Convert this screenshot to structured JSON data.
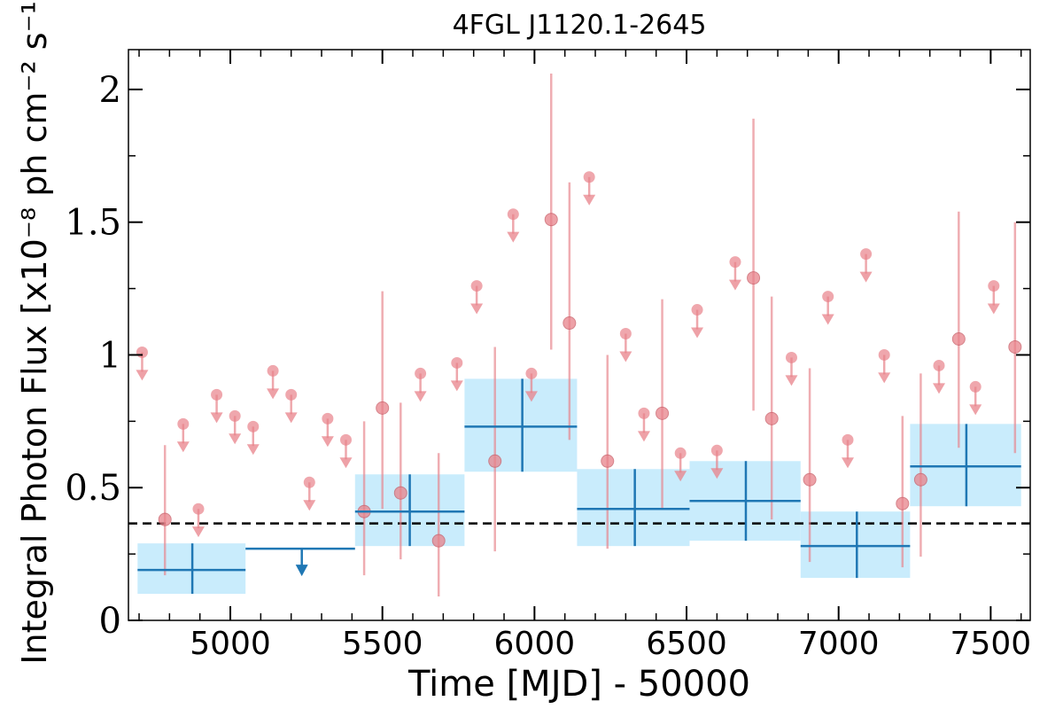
{
  "chart_data": {
    "type": "scatter",
    "title": "4FGL J1120.1-2645",
    "xlabel": "Time [MJD] - 50000",
    "ylabel": "Integral Photon Flux [x10⁻⁸ ph cm⁻² s⁻¹]",
    "xlim": [
      4665,
      7630
    ],
    "ylim": [
      0,
      2.15
    ],
    "x_ticks": [
      5000,
      5500,
      6000,
      6500,
      7000,
      7500
    ],
    "y_ticks": [
      0,
      0.5,
      1,
      1.5,
      2
    ],
    "y_tick_labels": [
      "0",
      "0.5",
      "1",
      "1.5",
      "2"
    ],
    "grid": false,
    "reference_line": {
      "y": 0.365,
      "style": "dashed"
    },
    "colors": {
      "fine_series": "#e8828a",
      "coarse_series": "#1f77b4",
      "band_fill": "#c9ecfc",
      "reference": "#000000"
    },
    "series": [
      {
        "kind": "fine-detections",
        "points": [
          {
            "x": 4785,
            "y": 0.38,
            "yerr_low": 0.21,
            "yerr_high": 0.28
          },
          {
            "x": 5500,
            "y": 0.8,
            "yerr_low": 0.38,
            "yerr_high": 0.44
          },
          {
            "x": 5440,
            "y": 0.41,
            "yerr_low": 0.24,
            "yerr_high": 0.34
          },
          {
            "x": 5560,
            "y": 0.48,
            "yerr_low": 0.25,
            "yerr_high": 0.34
          },
          {
            "x": 5685,
            "y": 0.3,
            "yerr_low": 0.21,
            "yerr_high": 0.33
          },
          {
            "x": 5870,
            "y": 0.6,
            "yerr_low": 0.34,
            "yerr_high": 0.43
          },
          {
            "x": 6055,
            "y": 1.51,
            "yerr_low": 0.49,
            "yerr_high": 0.55
          },
          {
            "x": 6115,
            "y": 1.12,
            "yerr_low": 0.44,
            "yerr_high": 0.53
          },
          {
            "x": 6240,
            "y": 0.6,
            "yerr_low": 0.33,
            "yerr_high": 0.4
          },
          {
            "x": 6420,
            "y": 0.78,
            "yerr_low": 0.36,
            "yerr_high": 0.43
          },
          {
            "x": 6720,
            "y": 1.29,
            "yerr_low": 0.5,
            "yerr_high": 0.6
          },
          {
            "x": 6780,
            "y": 0.76,
            "yerr_low": 0.38,
            "yerr_high": 0.46
          },
          {
            "x": 6905,
            "y": 0.53,
            "yerr_low": 0.31,
            "yerr_high": 0.42
          },
          {
            "x": 7210,
            "y": 0.44,
            "yerr_low": 0.24,
            "yerr_high": 0.33
          },
          {
            "x": 7270,
            "y": 0.53,
            "yerr_low": 0.29,
            "yerr_high": 0.4
          },
          {
            "x": 7395,
            "y": 1.06,
            "yerr_low": 0.41,
            "yerr_high": 0.48
          },
          {
            "x": 7580,
            "y": 1.03,
            "yerr_low": 0.4,
            "yerr_high": 0.47
          }
        ]
      },
      {
        "kind": "fine-upper-limits",
        "points": [
          {
            "x": 4710,
            "y": 1.01
          },
          {
            "x": 4845,
            "y": 0.74
          },
          {
            "x": 4895,
            "y": 0.42
          },
          {
            "x": 4955,
            "y": 0.85
          },
          {
            "x": 5015,
            "y": 0.77
          },
          {
            "x": 5075,
            "y": 0.73
          },
          {
            "x": 5140,
            "y": 0.94
          },
          {
            "x": 5200,
            "y": 0.85
          },
          {
            "x": 5260,
            "y": 0.52
          },
          {
            "x": 5320,
            "y": 0.76
          },
          {
            "x": 5380,
            "y": 0.68
          },
          {
            "x": 5625,
            "y": 0.93
          },
          {
            "x": 5745,
            "y": 0.97
          },
          {
            "x": 5810,
            "y": 1.26
          },
          {
            "x": 5930,
            "y": 1.53
          },
          {
            "x": 5990,
            "y": 0.93
          },
          {
            "x": 6180,
            "y": 1.67
          },
          {
            "x": 6300,
            "y": 1.08
          },
          {
            "x": 6360,
            "y": 0.78
          },
          {
            "x": 6480,
            "y": 0.63
          },
          {
            "x": 6535,
            "y": 1.17
          },
          {
            "x": 6600,
            "y": 0.64
          },
          {
            "x": 6660,
            "y": 1.35
          },
          {
            "x": 6845,
            "y": 0.99
          },
          {
            "x": 6965,
            "y": 1.22
          },
          {
            "x": 7030,
            "y": 0.68
          },
          {
            "x": 7090,
            "y": 1.38
          },
          {
            "x": 7150,
            "y": 1.0
          },
          {
            "x": 7330,
            "y": 0.96
          },
          {
            "x": 7450,
            "y": 0.88
          },
          {
            "x": 7510,
            "y": 1.26
          }
        ]
      },
      {
        "kind": "coarse-detections",
        "bins": [
          {
            "x_start": 4695,
            "x_end": 5050,
            "x": 4875,
            "y": 0.19,
            "y_low": 0.1,
            "y_high": 0.29
          },
          {
            "x_start": 5410,
            "x_end": 5770,
            "x": 5590,
            "y": 0.41,
            "y_low": 0.28,
            "y_high": 0.55
          },
          {
            "x_start": 5770,
            "x_end": 6140,
            "x": 5960,
            "y": 0.73,
            "y_low": 0.56,
            "y_high": 0.91
          },
          {
            "x_start": 6140,
            "x_end": 6510,
            "x": 6330,
            "y": 0.42,
            "y_low": 0.28,
            "y_high": 0.57
          },
          {
            "x_start": 6510,
            "x_end": 6875,
            "x": 6695,
            "y": 0.45,
            "y_low": 0.3,
            "y_high": 0.6
          },
          {
            "x_start": 6875,
            "x_end": 7235,
            "x": 7060,
            "y": 0.28,
            "y_low": 0.16,
            "y_high": 0.41
          },
          {
            "x_start": 7235,
            "x_end": 7600,
            "x": 7420,
            "y": 0.58,
            "y_low": 0.43,
            "y_high": 0.74
          }
        ]
      },
      {
        "kind": "coarse-upper-limits",
        "bins": [
          {
            "x_start": 5050,
            "x_end": 5410,
            "x": 5235,
            "y": 0.27
          }
        ]
      }
    ]
  }
}
